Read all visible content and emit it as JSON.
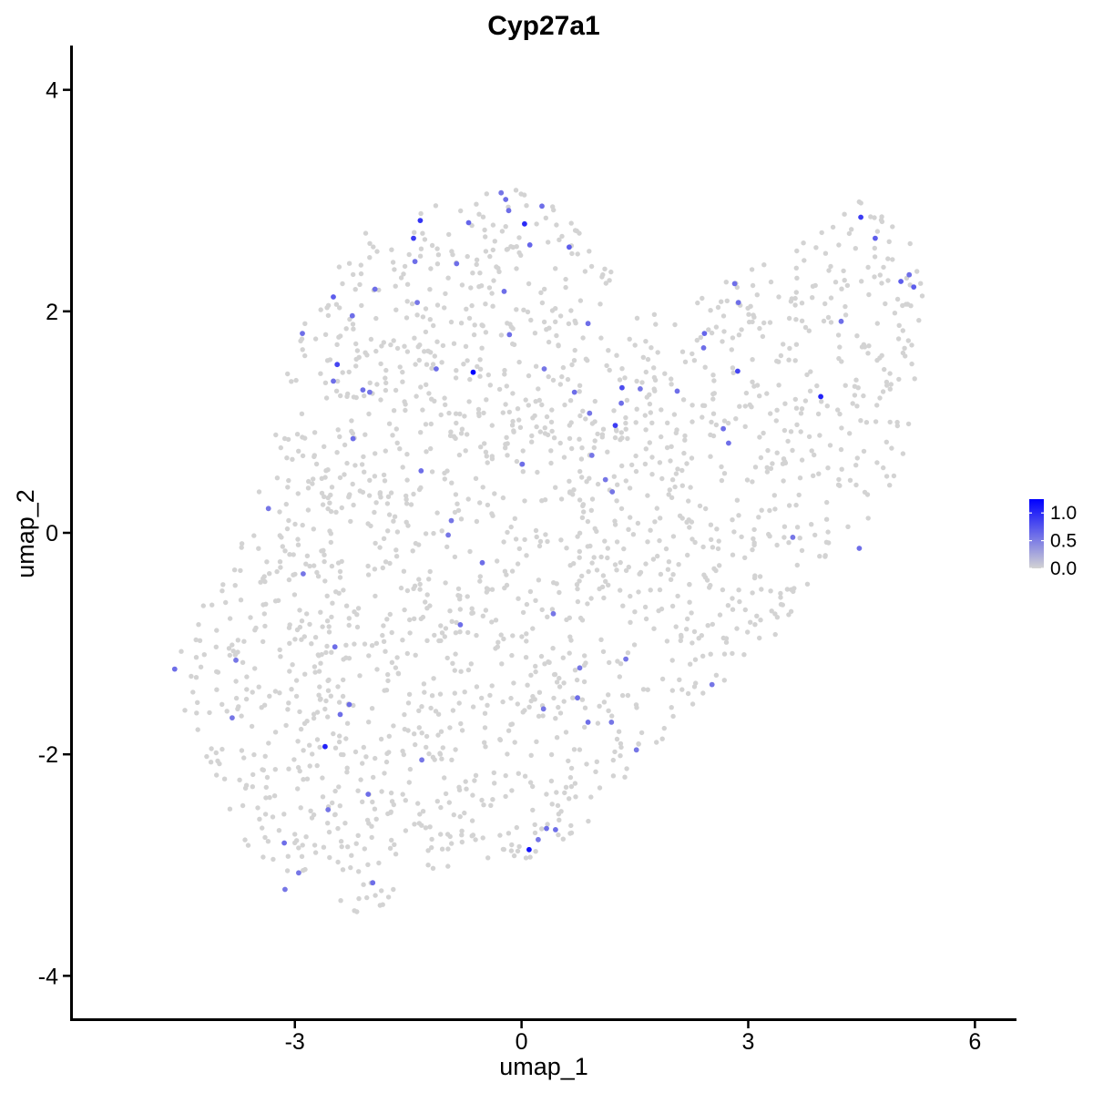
{
  "chart_data": {
    "type": "scatter",
    "title": "Cyp27a1",
    "xlabel": "umap_1",
    "ylabel": "umap_2",
    "xlim": [
      -5.95,
      6.55
    ],
    "ylim": [
      -4.4,
      4.4
    ],
    "x_ticks": [
      -3,
      0,
      3,
      6
    ],
    "x_tick_labels": [
      "-3",
      "0",
      "3",
      "6"
    ],
    "y_ticks": [
      -4,
      -2,
      0,
      2,
      4
    ],
    "y_tick_labels": [
      "-4",
      "-2",
      "0",
      "2",
      "4"
    ],
    "grid": false,
    "legend": {
      "placement": "right",
      "type": "colorbar",
      "ticks": [
        0.0,
        0.5,
        1.0
      ],
      "tick_labels": [
        "0.0",
        "0.5",
        "1.0"
      ],
      "min": 0.0,
      "max": 1.25
    },
    "colors": {
      "low": "#d3d3d3",
      "high": "#0000ff"
    },
    "expressing_cells": [
      [
        -0.64,
        1.45,
        1.25
      ],
      [
        0.1,
        -2.86,
        1.15
      ],
      [
        3.96,
        1.23,
        1.05
      ],
      [
        0.04,
        2.79,
        1.0
      ],
      [
        -1.34,
        2.82,
        0.95
      ],
      [
        -2.6,
        -1.93,
        1.05
      ],
      [
        4.49,
        2.85,
        0.9
      ],
      [
        -1.43,
        2.66,
        0.9
      ],
      [
        1.24,
        0.97,
        0.9
      ],
      [
        -2.44,
        1.52,
        0.85
      ],
      [
        2.86,
        1.46,
        0.85
      ],
      [
        1.33,
        1.31,
        0.8
      ],
      [
        0.63,
        2.58,
        0.7
      ],
      [
        -0.21,
        3.01,
        0.6
      ],
      [
        -0.27,
        3.07,
        0.55
      ],
      [
        0.27,
        2.95,
        0.6
      ],
      [
        -0.7,
        2.8,
        0.65
      ],
      [
        -0.86,
        2.43,
        0.6
      ],
      [
        0.11,
        2.6,
        0.65
      ],
      [
        -1.41,
        2.45,
        0.6
      ],
      [
        -2.49,
        2.13,
        0.7
      ],
      [
        -2.24,
        1.96,
        0.6
      ],
      [
        -2.9,
        1.8,
        0.6
      ],
      [
        -1.94,
        2.2,
        0.6
      ],
      [
        -1.38,
        2.08,
        0.55
      ],
      [
        -0.17,
        2.91,
        0.6
      ],
      [
        -0.23,
        2.18,
        0.6
      ],
      [
        -0.16,
        1.79,
        0.6
      ],
      [
        0.88,
        1.89,
        0.6
      ],
      [
        2.42,
        1.8,
        0.65
      ],
      [
        2.41,
        1.67,
        0.6
      ],
      [
        2.82,
        2.25,
        0.6
      ],
      [
        2.87,
        2.08,
        0.6
      ],
      [
        4.23,
        1.91,
        0.6
      ],
      [
        4.68,
        2.66,
        0.7
      ],
      [
        5.02,
        2.27,
        0.7
      ],
      [
        5.13,
        2.33,
        0.6
      ],
      [
        5.19,
        2.22,
        0.7
      ],
      [
        -2.1,
        1.29,
        0.6
      ],
      [
        -2.01,
        1.27,
        0.55
      ],
      [
        -1.13,
        1.48,
        0.6
      ],
      [
        -2.49,
        1.37,
        0.6
      ],
      [
        -2.23,
        0.85,
        0.6
      ],
      [
        0.3,
        1.48,
        0.55
      ],
      [
        0.7,
        1.27,
        0.6
      ],
      [
        1.32,
        1.17,
        0.6
      ],
      [
        1.57,
        1.3,
        0.55
      ],
      [
        2.06,
        1.28,
        0.6
      ],
      [
        0.9,
        1.08,
        0.55
      ],
      [
        0.93,
        0.7,
        0.55
      ],
      [
        1.11,
        0.48,
        0.55
      ],
      [
        1.2,
        0.37,
        0.55
      ],
      [
        2.67,
        0.94,
        0.6
      ],
      [
        2.74,
        0.81,
        0.6
      ],
      [
        0.01,
        0.62,
        0.6
      ],
      [
        -1.33,
        0.56,
        0.6
      ],
      [
        -3.35,
        0.22,
        0.55
      ],
      [
        -0.93,
        0.11,
        0.55
      ],
      [
        -0.97,
        -0.02,
        0.55
      ],
      [
        -0.52,
        -0.27,
        0.6
      ],
      [
        -2.89,
        -0.37,
        0.55
      ],
      [
        3.59,
        -0.04,
        0.55
      ],
      [
        4.47,
        -0.14,
        0.6
      ],
      [
        -0.81,
        -0.83,
        0.6
      ],
      [
        0.42,
        -0.73,
        0.55
      ],
      [
        -2.47,
        -1.03,
        0.6
      ],
      [
        -3.78,
        -1.15,
        0.55
      ],
      [
        -4.59,
        -1.23,
        0.6
      ],
      [
        1.38,
        -1.14,
        0.55
      ],
      [
        2.52,
        -1.37,
        0.55
      ],
      [
        0.74,
        -1.49,
        0.6
      ],
      [
        0.29,
        -1.59,
        0.55
      ],
      [
        -2.28,
        -1.55,
        0.6
      ],
      [
        -2.4,
        -1.64,
        0.6
      ],
      [
        -3.83,
        -1.67,
        0.55
      ],
      [
        0.88,
        -1.71,
        0.6
      ],
      [
        1.19,
        -1.71,
        0.55
      ],
      [
        1.52,
        -1.96,
        0.55
      ],
      [
        -1.32,
        -2.05,
        0.55
      ],
      [
        -2.03,
        -2.36,
        0.6
      ],
      [
        -2.56,
        -2.5,
        0.55
      ],
      [
        0.33,
        -2.67,
        0.6
      ],
      [
        0.45,
        -2.68,
        0.6
      ],
      [
        0.22,
        -2.77,
        0.55
      ],
      [
        -3.14,
        -2.8,
        0.6
      ],
      [
        -2.95,
        -3.07,
        0.55
      ],
      [
        -3.13,
        -3.22,
        0.55
      ],
      [
        -1.97,
        -3.16,
        0.6
      ],
      [
        0.77,
        -1.22,
        0.55
      ]
    ]
  }
}
